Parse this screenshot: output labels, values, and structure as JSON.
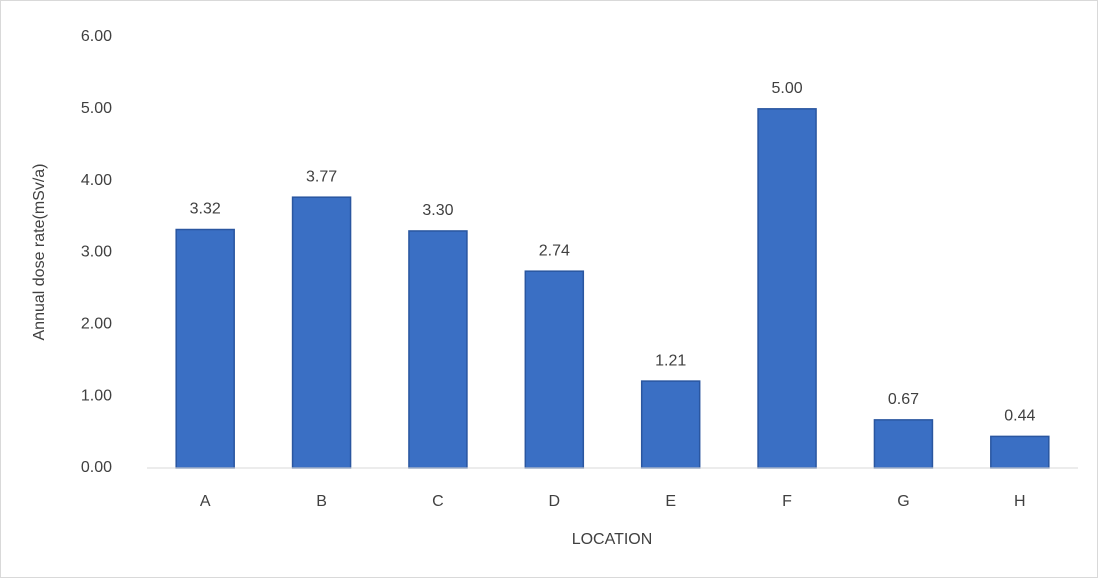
{
  "chart_data": {
    "type": "bar",
    "x_label": "LOCATION",
    "y_label": "Annual dose rate(mSv/a)",
    "categories": [
      "A",
      "B",
      "C",
      "D",
      "E",
      "F",
      "G",
      "H"
    ],
    "values": [
      3.32,
      3.77,
      3.3,
      2.74,
      1.21,
      5.0,
      0.67,
      0.44
    ],
    "value_labels": [
      "3.32",
      "3.77",
      "3.30",
      "2.74",
      "1.21",
      "5.00",
      "0.67",
      "0.44"
    ],
    "color": "#3a6fc4",
    "ylim": [
      0,
      6
    ],
    "yticks": [
      {
        "value": 0,
        "label": "0.00"
      },
      {
        "value": 1,
        "label": "1.00"
      },
      {
        "value": 2,
        "label": "2.00"
      },
      {
        "value": 3,
        "label": "3.00"
      },
      {
        "value": 4,
        "label": "4.00"
      },
      {
        "value": 5,
        "label": "5.00"
      },
      {
        "value": 6,
        "label": "6.00"
      }
    ],
    "grid": false
  }
}
